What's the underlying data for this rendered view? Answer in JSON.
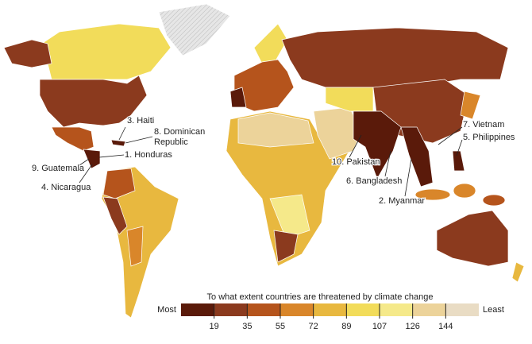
{
  "map": {
    "legend": {
      "title": "To what extent countries are threatened by climate change",
      "low_label": "Most",
      "high_label": "Least",
      "ticks": [
        19,
        35,
        55,
        72,
        89,
        107,
        126,
        144
      ],
      "colors": [
        "#5a1a0a",
        "#8b3a1e",
        "#b5541c",
        "#d9862a",
        "#e8b83f",
        "#f2dc5a",
        "#f5e98a",
        "#ecd39a",
        "#e9dcc4"
      ]
    },
    "labels": [
      {
        "lines": [
          "3. Haiti"
        ]
      },
      {
        "lines": [
          "8. Dominican",
          "Republic"
        ]
      },
      {
        "lines": [
          "1. Honduras"
        ]
      },
      {
        "lines": [
          "9. Guatemala"
        ]
      },
      {
        "lines": [
          "4. Nicaragua"
        ]
      },
      {
        "lines": [
          "10. Pakistan"
        ]
      },
      {
        "lines": [
          "6. Bangladesh"
        ]
      },
      {
        "lines": [
          "2. Myanmar"
        ]
      },
      {
        "lines": [
          "7. Vietnam"
        ]
      },
      {
        "lines": [
          "5. Philippines"
        ]
      }
    ]
  }
}
